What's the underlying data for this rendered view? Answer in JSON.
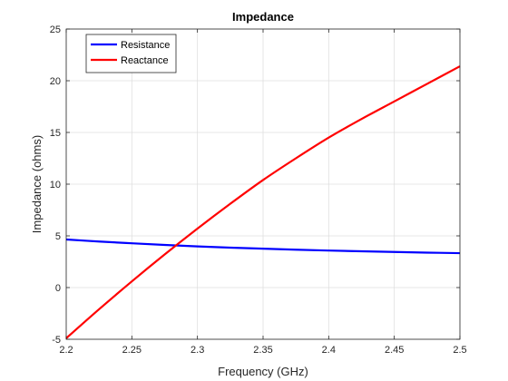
{
  "chart_data": {
    "type": "line",
    "title": "Impedance",
    "xlabel": "Frequency (GHz)",
    "ylabel": "Impedance (ohms)",
    "xlim": [
      2.2,
      2.5
    ],
    "ylim": [
      -5,
      25
    ],
    "xticks": [
      "2.2",
      "2.25",
      "2.3",
      "2.35",
      "2.4",
      "2.45",
      "2.5"
    ],
    "yticks": [
      "-5",
      "0",
      "5",
      "10",
      "15",
      "20",
      "25"
    ],
    "grid": true,
    "legend": "top-left",
    "series": [
      {
        "name": "Resistance",
        "color": "#0000ff",
        "x": [
          2.2,
          2.225,
          2.25,
          2.275,
          2.3,
          2.325,
          2.35,
          2.375,
          2.4,
          2.425,
          2.45,
          2.475,
          2.5
        ],
        "y": [
          4.65,
          4.45,
          4.28,
          4.12,
          3.98,
          3.86,
          3.76,
          3.66,
          3.58,
          3.51,
          3.44,
          3.38,
          3.33
        ]
      },
      {
        "name": "Reactance",
        "color": "#ff0000",
        "x": [
          2.2,
          2.225,
          2.25,
          2.275,
          2.3,
          2.325,
          2.35,
          2.375,
          2.4,
          2.425,
          2.45,
          2.475,
          2.5
        ],
        "y": [
          -4.9,
          -2.1,
          0.6,
          3.2,
          5.7,
          8.1,
          10.4,
          12.5,
          14.5,
          16.3,
          18.0,
          19.7,
          21.4
        ]
      }
    ]
  }
}
